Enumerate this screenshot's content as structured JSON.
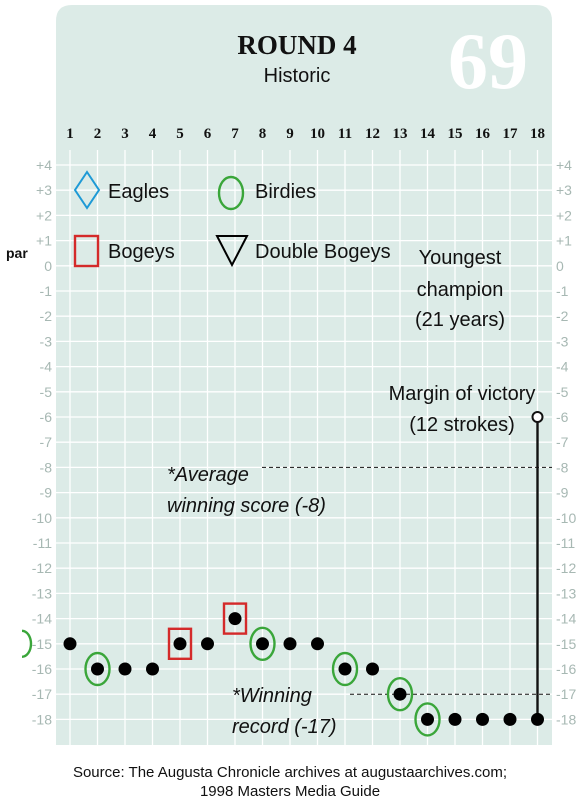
{
  "chart_data": {
    "type": "line",
    "title": "ROUND 4",
    "subtitle": "Historic",
    "score_badge": "69",
    "left_axis_label": "par",
    "x": [
      1,
      2,
      3,
      4,
      5,
      6,
      7,
      8,
      9,
      10,
      11,
      12,
      13,
      14,
      15,
      16,
      17,
      18
    ],
    "x_tick_labels": [
      "1",
      "2",
      "3",
      "4",
      "5",
      "6",
      "7",
      "8",
      "9",
      "10",
      "11",
      "12",
      "13",
      "14",
      "15",
      "16",
      "17",
      "18"
    ],
    "xlim": [
      1,
      18
    ],
    "ylim": [
      -18,
      4
    ],
    "y_ticks": [
      4,
      3,
      2,
      1,
      0,
      -1,
      -2,
      -3,
      -4,
      -5,
      -6,
      -7,
      -8,
      -9,
      -10,
      -11,
      -12,
      -13,
      -14,
      -15,
      -16,
      -17,
      -18
    ],
    "y_tick_labels": [
      "+4",
      "+3",
      "+2",
      "+1",
      "0",
      "-1",
      "-2",
      "-3",
      "-4",
      "-5",
      "-6",
      "-7",
      "-8",
      "-9",
      "-10",
      "-11",
      "-12",
      "-13",
      "-14",
      "-15",
      "-16",
      "-17",
      "-18"
    ],
    "grid": true,
    "start_score": -15,
    "series": [
      {
        "values": [
          -15,
          -16,
          -16,
          -16,
          -15,
          -15,
          -14,
          -15,
          -15,
          -15,
          -16,
          -16,
          -17,
          -18,
          -18,
          -18,
          -18,
          -18
        ]
      }
    ],
    "hole_results": [
      {
        "hole": 2,
        "result": "birdie"
      },
      {
        "hole": 5,
        "result": "bogey"
      },
      {
        "hole": 7,
        "result": "bogey"
      },
      {
        "hole": 8,
        "result": "birdie"
      },
      {
        "hole": 11,
        "result": "birdie"
      },
      {
        "hole": 13,
        "result": "birdie"
      },
      {
        "hole": 14,
        "result": "birdie"
      }
    ],
    "legend": [
      {
        "label": "Eagles",
        "symbol": "diamond",
        "color": "#1e9ad6"
      },
      {
        "label": "Birdies",
        "symbol": "circle",
        "color": "#3aa63a"
      },
      {
        "label": "Bogeys",
        "symbol": "square",
        "color": "#d42a2a"
      },
      {
        "label": "Double Bogeys",
        "symbol": "triangle",
        "color": "#000000"
      }
    ],
    "annotations": {
      "youngest": [
        "Youngest",
        "champion",
        "(21 years)"
      ],
      "margin": [
        "Margin of victory",
        "(12 strokes)"
      ],
      "margin_range": [
        -6,
        -18
      ],
      "average": {
        "lines": [
          "*Average",
          "winning score (-8)"
        ],
        "value": -8
      },
      "record": {
        "lines": [
          "*Winning",
          "record (-17)"
        ],
        "value": -17
      }
    },
    "colors": {
      "panel": "#dcebe7",
      "grid": "#ffffff",
      "tick_label": "#a7b8b3",
      "marker": "#000000",
      "birdie": "#3aa63a",
      "bogey": "#d42a2a",
      "eagle": "#1e9ad6",
      "badge": "#ffffff"
    }
  },
  "source_lines": [
    "Source: The Augusta Chronicle archives at augustaarchives.com;",
    "1998 Masters Media Guide"
  ]
}
